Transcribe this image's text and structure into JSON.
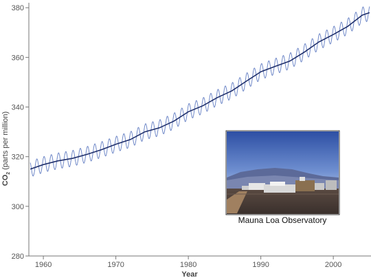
{
  "chart_data": {
    "type": "line",
    "title": "",
    "xlabel": "Year",
    "ylabel": {
      "prefix": "CO",
      "subscript": "2",
      "suffix": " (parts per million)"
    },
    "xlim": [
      1958,
      2005.2
    ],
    "ylim": [
      280,
      382
    ],
    "x_ticks": [
      1960,
      1970,
      1980,
      1990,
      2000
    ],
    "y_ticks": [
      280,
      300,
      320,
      340,
      360,
      380
    ],
    "grid": false,
    "series": [
      {
        "kind": "trend",
        "color": "#1f2f6b",
        "x": [
          1958.2,
          1960,
          1962,
          1964,
          1966,
          1968,
          1970,
          1972,
          1974,
          1976,
          1978,
          1980,
          1982,
          1984,
          1986,
          1988,
          1990,
          1992,
          1994,
          1996,
          1998,
          2000,
          2002,
          2004,
          2005
        ],
        "y": [
          315.0,
          316.8,
          318.3,
          319.3,
          320.9,
          322.8,
          325.0,
          326.9,
          330.0,
          331.6,
          334.3,
          338.1,
          340.5,
          343.8,
          346.5,
          350.4,
          354.2,
          356.4,
          358.5,
          362.1,
          366.2,
          369.2,
          372.5,
          377.0,
          378.0
        ]
      },
      {
        "kind": "monthly",
        "color": "#6f88c8",
        "amplitude": 3.2,
        "cycles_per_year": 1
      }
    ]
  },
  "inset": {
    "caption": "Mauna Loa Observatory",
    "photo_icon": "observatory-photo"
  }
}
